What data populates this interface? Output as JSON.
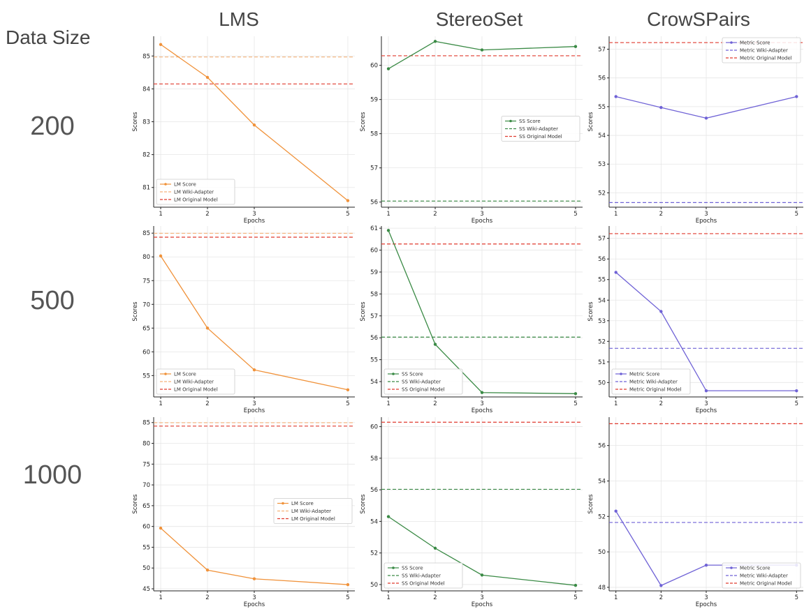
{
  "row_header": "Data Size",
  "columns": [
    "LMS",
    "StereoSet",
    "CrowSPairs"
  ],
  "rows": [
    "200",
    "500",
    "1000"
  ],
  "colors": {
    "LMS": {
      "score": "#f0923a",
      "adapter": "#f5b27a",
      "original": "#e03a2f"
    },
    "StereoSet": {
      "score": "#3a8a45",
      "adapter": "#3a8a45",
      "original": "#e03a2f"
    },
    "CrowSPairs": {
      "score": "#6f62d6",
      "adapter": "#6f62d6",
      "original": "#e03a2f"
    }
  },
  "chart_data": [
    {
      "type": "line",
      "metric": "LMS",
      "data_size": "200",
      "xlabel": "Epochs",
      "ylabel": "Scores",
      "x": [
        1,
        2,
        3,
        5
      ],
      "ylim": [
        80.4,
        85.6
      ],
      "yticks": [
        81,
        82,
        83,
        84,
        85
      ],
      "series": [
        {
          "name": "LM Score",
          "values": [
            85.35,
            84.35,
            82.9,
            80.6
          ]
        },
        {
          "name": "LM Wiki-Adapter",
          "constant": 84.97
        },
        {
          "name": "LM Original Model",
          "constant": 84.15
        }
      ],
      "legend": "lower-left"
    },
    {
      "type": "line",
      "metric": "StereoSet",
      "data_size": "200",
      "xlabel": "Epochs",
      "ylabel": "Scores",
      "x": [
        1,
        2,
        3,
        5
      ],
      "ylim": [
        55.85,
        60.85
      ],
      "yticks": [
        56,
        57,
        58,
        59,
        60
      ],
      "series": [
        {
          "name": "SS Score",
          "values": [
            59.9,
            60.7,
            60.45,
            60.55
          ]
        },
        {
          "name": "SS Wiki-Adapter",
          "constant": 56.03
        },
        {
          "name": "SS Original Model",
          "constant": 60.28
        }
      ],
      "legend": "center-right"
    },
    {
      "type": "line",
      "metric": "CrowSPairs",
      "data_size": "200",
      "xlabel": "Epochs",
      "ylabel": "Scores",
      "x": [
        1,
        2,
        3,
        5
      ],
      "ylim": [
        51.5,
        57.45
      ],
      "yticks": [
        52,
        53,
        54,
        55,
        56,
        57
      ],
      "series": [
        {
          "name": "Metric Score",
          "values": [
            55.35,
            54.97,
            54.6,
            55.35
          ]
        },
        {
          "name": "Metric Wiki-Adapter",
          "constant": 51.66
        },
        {
          "name": "Metric Original Model",
          "constant": 57.23
        }
      ],
      "legend": "top-right"
    },
    {
      "type": "line",
      "metric": "LMS",
      "data_size": "500",
      "xlabel": "Epochs",
      "ylabel": "Scores",
      "x": [
        1,
        2,
        3,
        5
      ],
      "ylim": [
        50.5,
        86.5
      ],
      "yticks": [
        55,
        60,
        65,
        70,
        75,
        80,
        85
      ],
      "series": [
        {
          "name": "LM Score",
          "values": [
            80.2,
            65.0,
            56.2,
            52.0
          ]
        },
        {
          "name": "LM Wiki-Adapter",
          "constant": 84.97
        },
        {
          "name": "LM Original Model",
          "constant": 84.15
        }
      ],
      "legend": "lower-left"
    },
    {
      "type": "line",
      "metric": "StereoSet",
      "data_size": "500",
      "xlabel": "Epochs",
      "ylabel": "Scores",
      "x": [
        1,
        2,
        3,
        5
      ],
      "ylim": [
        53.3,
        61.1
      ],
      "yticks": [
        54,
        55,
        56,
        57,
        58,
        59,
        60,
        61
      ],
      "series": [
        {
          "name": "SS Score",
          "values": [
            60.9,
            55.7,
            53.5,
            53.45
          ]
        },
        {
          "name": "SS Wiki-Adapter",
          "constant": 56.03
        },
        {
          "name": "SS Original Model",
          "constant": 60.28
        }
      ],
      "legend": "lower-left"
    },
    {
      "type": "line",
      "metric": "CrowSPairs",
      "data_size": "500",
      "xlabel": "Epochs",
      "ylabel": "Scores",
      "x": [
        1,
        2,
        3,
        5
      ],
      "ylim": [
        49.3,
        57.6
      ],
      "yticks": [
        50,
        51,
        52,
        53,
        54,
        55,
        56,
        57
      ],
      "series": [
        {
          "name": "Metric Score",
          "values": [
            55.35,
            53.45,
            49.6,
            49.6
          ]
        },
        {
          "name": "Metric Wiki-Adapter",
          "constant": 51.66
        },
        {
          "name": "Metric Original Model",
          "constant": 57.23
        }
      ],
      "legend": "lower-left"
    },
    {
      "type": "line",
      "metric": "LMS",
      "data_size": "1000",
      "xlabel": "Epochs",
      "ylabel": "Scores",
      "x": [
        1,
        2,
        3,
        5
      ],
      "ylim": [
        44.5,
        86.3
      ],
      "yticks": [
        45,
        50,
        55,
        60,
        65,
        70,
        75,
        80,
        85
      ],
      "series": [
        {
          "name": "LM Score",
          "values": [
            59.6,
            49.5,
            47.4,
            46.0
          ]
        },
        {
          "name": "LM Wiki-Adapter",
          "constant": 84.97
        },
        {
          "name": "LM Original Model",
          "constant": 84.15
        }
      ],
      "legend": "center-right"
    },
    {
      "type": "line",
      "metric": "StereoSet",
      "data_size": "1000",
      "xlabel": "Epochs",
      "ylabel": "Scores",
      "x": [
        1,
        2,
        3,
        5
      ],
      "ylim": [
        49.6,
        60.6
      ],
      "yticks": [
        50,
        52,
        54,
        56,
        58,
        60
      ],
      "series": [
        {
          "name": "SS Score",
          "values": [
            54.3,
            52.3,
            50.6,
            49.95
          ]
        },
        {
          "name": "SS Wiki-Adapter",
          "constant": 56.03
        },
        {
          "name": "SS Original Model",
          "constant": 60.28
        }
      ],
      "legend": "lower-left"
    },
    {
      "type": "line",
      "metric": "CrowSPairs",
      "data_size": "1000",
      "xlabel": "Epochs",
      "ylabel": "Scores",
      "x": [
        1,
        2,
        3,
        5
      ],
      "ylim": [
        47.8,
        57.6
      ],
      "yticks": [
        48,
        50,
        52,
        54,
        56
      ],
      "series": [
        {
          "name": "Metric Score",
          "values": [
            52.3,
            48.1,
            49.25,
            49.25
          ]
        },
        {
          "name": "Metric Wiki-Adapter",
          "constant": 51.66
        },
        {
          "name": "Metric Original Model",
          "constant": 57.23
        }
      ],
      "legend": "lower-right"
    }
  ]
}
